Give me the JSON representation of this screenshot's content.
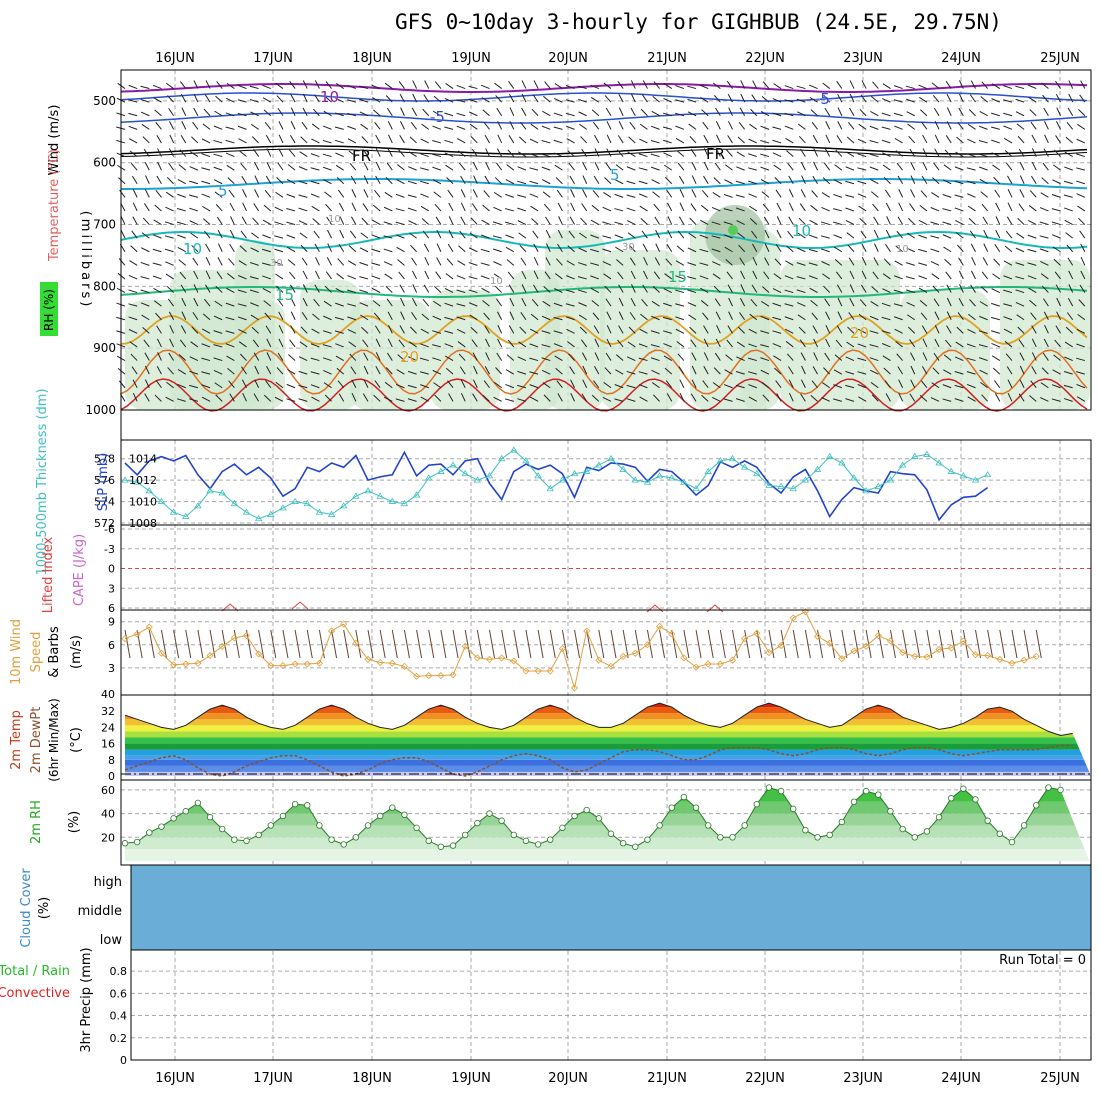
{
  "title": "GFS 0~10day 3-hourly for GIGHBUB (24.5E, 29.75N)",
  "dates": [
    "16JUN",
    "17JUN",
    "18JUN",
    "19JUN",
    "20JUN",
    "21JUN",
    "22JUN",
    "23JUN",
    "24JUN",
    "25JUN"
  ],
  "colors": {
    "grid": "#aaaaaa",
    "frame": "#000000",
    "temp_purple": "#8a1aa8",
    "temp_blue": "#2a4fcf",
    "temp_black": "#000000",
    "temp_lightblue": "#1ea0d8",
    "temp_cyan": "#18b8b8",
    "temp_green": "#22b87a",
    "temp_orange": "#e0a020",
    "temp_darkorange": "#e07020",
    "temp_red": "#d02020",
    "rh_shade": "#cfe7cf",
    "slp_line": "#2244cc",
    "thick_line": "#40c0c0",
    "li_line": "#e04040",
    "wind_line": "#e0a040",
    "rh2m_fill": "#3ec03e",
    "cloud_fill": "#6aaed8"
  },
  "panels": {
    "upper": {
      "ylabel_parts": [
        "Wind (m/s)",
        "Temperature (°C)",
        "RH (%)"
      ],
      "ylabel_unit": "(millibars)",
      "yticks": [
        "500",
        "600",
        "700",
        "800",
        "900",
        "1000"
      ],
      "contour_labels": [
        "10",
        "-5",
        "-5",
        "FR",
        "FR",
        "5",
        "5",
        "10",
        "10",
        "15",
        "15",
        "20",
        "20",
        "10",
        "30",
        "30",
        "10",
        "10"
      ]
    },
    "slp": {
      "ylabel_left": "1000-500mb Thickness (dm)",
      "ylabel_right": "SLP (mb)",
      "yticks_left": [
        "578",
        "576",
        "574",
        "572"
      ],
      "yticks_right": [
        "1014",
        "1012",
        "1010",
        "1008"
      ]
    },
    "li": {
      "ylabel_left": "Lifted Index",
      "ylabel_right": "CAPE (J/kg)",
      "yticks": [
        "-6",
        "-3",
        "0",
        "3",
        "6"
      ]
    },
    "wind10": {
      "ylabel_a": "10m Wind",
      "ylabel_b": "Speed",
      "ylabel_c": "& Barbs",
      "ylabel_unit": "(m/s)",
      "yticks": [
        "9",
        "6",
        "3",
        "40"
      ]
    },
    "temp2m": {
      "ylabel_a": "2m Temp",
      "ylabel_b": "2m DewPt",
      "ylabel_c": "(6hr Min/Max)",
      "ylabel_unit": "(°C)",
      "yticks": [
        "32",
        "24",
        "16",
        "8",
        "0"
      ]
    },
    "rh2m": {
      "ylabel": "2m RH",
      "ylabel_unit": "(%)",
      "yticks": [
        "60",
        "40",
        "20"
      ]
    },
    "cloud": {
      "ylabel": "Cloud Cover",
      "ylabel_unit": "(%)",
      "levels": [
        "high",
        "middle",
        "low"
      ]
    },
    "precip": {
      "ylabel_a": "Total / Rain",
      "ylabel_b": "Convective",
      "ylabel_c": "3hr Precip (mm)",
      "yticks": [
        "0.8",
        "0.6",
        "0.4",
        "0.2",
        "0"
      ],
      "run_total": "Run Total = 0"
    }
  },
  "chart_data": [
    {
      "type": "line",
      "panel": "slp",
      "series": [
        {
          "name": "SLP (mb)",
          "values": [
            1013.6,
            1012.5,
            1013.8,
            1014.2,
            1013.8,
            1014.3,
            1012.5,
            1011.2,
            1012.8,
            1013.5,
            1012.5,
            1013.2,
            1012.2,
            1010.5,
            1011.2,
            1013.2,
            1012.8,
            1013.6,
            1013.2,
            1014.3,
            1012.0,
            1012.3,
            1012.5,
            1014.6,
            1012.4,
            1013.4,
            1013.5,
            1012.5,
            1013.8,
            1014.0,
            1011.7,
            1010.2,
            1012.8,
            1013.5,
            1013.0,
            1013.4,
            1012.6,
            1010.4,
            1013.2,
            1012.9,
            1013.6,
            1013.5,
            1013.2,
            1011.9,
            1013.0,
            1012.8,
            1011.8,
            1010.6,
            1011.5,
            1013.7,
            1013.2,
            1013.8,
            1013.2,
            1011.7,
            1010.8,
            1012.3,
            1013.0,
            1011.0,
            1008.6,
            1010.2,
            1011.3,
            1011.0,
            1010.8,
            1012.8,
            1012.6,
            1012.5,
            1011.1,
            1008.3,
            1009.7,
            1010.4,
            1010.5,
            1011.3
          ]
        },
        {
          "name": "1000-500mb Thickness (dm)",
          "values": [
            576.0,
            575.8,
            575.0,
            574.0,
            573.0,
            572.6,
            573.6,
            575.0,
            574.8,
            573.8,
            573.0,
            572.4,
            572.8,
            573.4,
            574.0,
            573.8,
            573.0,
            572.8,
            573.6,
            574.5,
            575.0,
            574.5,
            574.0,
            573.8,
            574.6,
            576.2,
            576.8,
            577.4,
            576.6,
            576.0,
            576.4,
            578.0,
            578.8,
            577.8,
            576.4,
            575.2,
            576.0,
            576.6,
            576.8,
            577.4,
            578.0,
            577.0,
            576.0,
            575.8,
            576.4,
            576.2,
            575.8,
            575.2,
            576.8,
            577.8,
            578.0,
            577.2,
            576.6,
            575.5,
            575.4,
            575.2,
            576.0,
            577.0,
            578.2,
            577.6,
            576.2,
            575.0,
            575.4,
            576.0,
            577.4,
            578.2,
            578.4,
            577.6,
            576.8,
            576.4,
            576.0,
            576.5
          ]
        }
      ],
      "ylim_left": [
        572,
        579
      ],
      "ylim_right": [
        1008,
        1015
      ]
    },
    {
      "type": "line",
      "panel": "wind10",
      "series": [
        {
          "name": "10m Wind Speed",
          "values": [
            6.8,
            7.4,
            8.3,
            4.9,
            3.4,
            3.5,
            3.6,
            4.6,
            5.8,
            6.9,
            7.2,
            4.8,
            3.3,
            3.3,
            3.5,
            3.5,
            3.6,
            7.8,
            8.7,
            6.2,
            4.1,
            3.7,
            3.6,
            3.2,
            1.9,
            2.0,
            2.0,
            2.1,
            5.8,
            4.3,
            4.1,
            4.3,
            3.9,
            2.6,
            2.6,
            2.6,
            5.5,
            0.4,
            7.8,
            4.0,
            3.2,
            4.5,
            4.9,
            6.0,
            8.4,
            7.4,
            4.3,
            3.1,
            3.5,
            3.5,
            4.0,
            6.8,
            7.5,
            5.0,
            5.9,
            9.5,
            10.3,
            7.1,
            6.2,
            4.2,
            5.2,
            5.8,
            7.2,
            6.5,
            5.0,
            4.5,
            4.4,
            5.4,
            5.6,
            6.5,
            4.7,
            4.6,
            4.1,
            3.6,
            4.0,
            4.5
          ]
        }
      ],
      "ylim": [
        0,
        10
      ]
    },
    {
      "type": "area",
      "panel": "temp2m",
      "series": [
        {
          "name": "2m Temp",
          "values": [
            30,
            28,
            26,
            24,
            23,
            25,
            29,
            33,
            35,
            33,
            29,
            26,
            24,
            23,
            25,
            29,
            33,
            35,
            33,
            29,
            26,
            24,
            23,
            25,
            29,
            33,
            35,
            33,
            29,
            26,
            24,
            23,
            25,
            29,
            33,
            35,
            33,
            29,
            26,
            24,
            24,
            26,
            30,
            34,
            36,
            34,
            30,
            27,
            25,
            24,
            26,
            30,
            34,
            36,
            34,
            31,
            28,
            26,
            24,
            25,
            29,
            33,
            35,
            33,
            29,
            27,
            25,
            23,
            24,
            26,
            29,
            33,
            34,
            32,
            28,
            25,
            22,
            20,
            21
          ]
        },
        {
          "name": "2m DewPt",
          "values": [
            3,
            5,
            7,
            9,
            10,
            8,
            4,
            1,
            0,
            2,
            5,
            7,
            9,
            10,
            10,
            8,
            5,
            2,
            0,
            1,
            3,
            6,
            8,
            9,
            9,
            7,
            4,
            1,
            0,
            2,
            5,
            8,
            10,
            11,
            10,
            8,
            4,
            2,
            3,
            6,
            9,
            12,
            13,
            13,
            12,
            10,
            8,
            8,
            10,
            13,
            14,
            14,
            14,
            13,
            11,
            10,
            11,
            13,
            14,
            14,
            13,
            11,
            10,
            11,
            13,
            14,
            14,
            13,
            11,
            10,
            11,
            12,
            13,
            13,
            13,
            13,
            14,
            15,
            15
          ]
        }
      ],
      "ylim": [
        0,
        38
      ]
    },
    {
      "type": "area",
      "panel": "rh2m",
      "series": [
        {
          "name": "2m RH",
          "values": [
            15,
            16,
            24,
            29,
            36,
            42,
            49,
            37,
            27,
            18,
            17,
            22,
            30,
            38,
            48,
            47,
            30,
            18,
            14,
            20,
            30,
            38,
            45,
            39,
            28,
            17,
            12,
            13,
            22,
            32,
            40,
            34,
            22,
            17,
            14,
            18,
            28,
            38,
            43,
            36,
            23,
            15,
            12,
            18,
            30,
            45,
            54,
            45,
            30,
            20,
            20,
            30,
            48,
            62,
            59,
            44,
            26,
            20,
            22,
            33,
            50,
            59,
            56,
            42,
            27,
            20,
            25,
            37,
            53,
            61,
            52,
            34,
            23,
            16,
            30,
            47,
            62,
            60
          ]
        }
      ],
      "ylim": [
        0,
        65
      ]
    },
    {
      "type": "bar",
      "panel": "precip",
      "series": [
        {
          "name": "3hr Precip (mm)",
          "values": []
        }
      ],
      "ylim": [
        0,
        1
      ]
    }
  ]
}
